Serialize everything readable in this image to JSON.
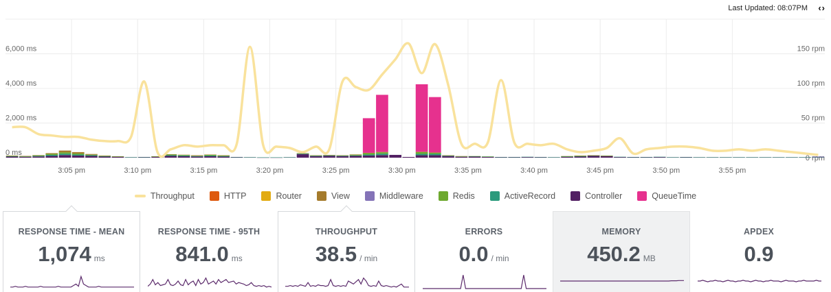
{
  "header": {
    "last_updated_label": "Last Updated: 08:07PM",
    "nav_arrows": "‹›"
  },
  "colors": {
    "throughput": "#f9e29c",
    "HTTP": "#de5a0f",
    "Router": "#e2ab13",
    "View": "#a57b2c",
    "Middleware": "#8473b7",
    "Redis": "#6ea92f",
    "ActiveRecord": "#2b9a7c",
    "Controller": "#522063",
    "QueueTime": "#e6318e",
    "sparkline": "#5b2a6b",
    "grid": "#ececec",
    "axis_text": "#666666"
  },
  "legend": [
    {
      "label": "Throughput",
      "key": "throughput",
      "kind": "line"
    },
    {
      "label": "HTTP",
      "key": "HTTP",
      "kind": "box"
    },
    {
      "label": "Router",
      "key": "Router",
      "kind": "box"
    },
    {
      "label": "View",
      "key": "View",
      "kind": "box"
    },
    {
      "label": "Middleware",
      "key": "Middleware",
      "kind": "box"
    },
    {
      "label": "Redis",
      "key": "Redis",
      "kind": "box"
    },
    {
      "label": "ActiveRecord",
      "key": "ActiveRecord",
      "kind": "box"
    },
    {
      "label": "Controller",
      "key": "Controller",
      "kind": "box"
    },
    {
      "label": "QueueTime",
      "key": "QueueTime",
      "kind": "box"
    }
  ],
  "chart_data": {
    "type": "bar",
    "title": "",
    "stacked": true,
    "x_start_minute": 0,
    "x_end_minute": 62,
    "x_ticks": [
      {
        "minute": 5,
        "label": "3:05 pm"
      },
      {
        "minute": 10,
        "label": "3:10 pm"
      },
      {
        "minute": 15,
        "label": "3:15 pm"
      },
      {
        "minute": 20,
        "label": "3:20 pm"
      },
      {
        "minute": 25,
        "label": "3:25 pm"
      },
      {
        "minute": 30,
        "label": "3:30 pm"
      },
      {
        "minute": 35,
        "label": "3:35 pm"
      },
      {
        "minute": 40,
        "label": "3:40 pm"
      },
      {
        "minute": 45,
        "label": "3:45 pm"
      },
      {
        "minute": 50,
        "label": "3:50 pm"
      },
      {
        "minute": 55,
        "label": "3:55 pm"
      }
    ],
    "y_left": {
      "min": 0,
      "max": 8000,
      "ticks": [
        0,
        2000,
        4000,
        6000
      ],
      "tick_labels": [
        "0 ms",
        "2,000 ms",
        "4,000 ms",
        "6,000 ms"
      ]
    },
    "y_right": {
      "min": 0,
      "max": 200,
      "ticks": [
        0,
        50,
        100,
        150
      ],
      "tick_labels": [
        "0 rpm",
        "50 rpm",
        "100 rpm",
        "150 rpm"
      ]
    },
    "stack_keys": [
      "Controller",
      "ActiveRecord",
      "Redis",
      "Middleware",
      "View",
      "Router",
      "HTTP",
      "QueueTime"
    ],
    "bar_series": [
      {
        "name": "QueueTime",
        "values": [
          0,
          0,
          0,
          0,
          0,
          0,
          0,
          0,
          0,
          0,
          0,
          0,
          0,
          0,
          0,
          0,
          0,
          0,
          0,
          0,
          0,
          0,
          0,
          0,
          0,
          0,
          0,
          2000,
          3300,
          0,
          0,
          3900,
          3200,
          0,
          0,
          0,
          0,
          0,
          0,
          0,
          0,
          0,
          0,
          0,
          0,
          0,
          0,
          0,
          0,
          0,
          0,
          0,
          0,
          0,
          0,
          0,
          0,
          0,
          0,
          0,
          0,
          0
        ]
      },
      {
        "name": "Controller",
        "values": [
          60,
          50,
          70,
          100,
          150,
          120,
          100,
          60,
          40,
          20,
          30,
          40,
          100,
          80,
          60,
          80,
          60,
          30,
          20,
          10,
          10,
          20,
          200,
          80,
          100,
          80,
          100,
          120,
          150,
          160,
          40,
          140,
          140,
          90,
          50,
          60,
          40,
          30,
          30,
          40,
          30,
          20,
          40,
          60,
          100,
          80,
          40,
          30,
          30,
          40,
          20,
          30,
          20,
          20,
          20,
          20,
          20,
          20,
          20,
          20,
          20,
          20
        ]
      },
      {
        "name": "ActiveRecord",
        "values": [
          20,
          20,
          30,
          60,
          80,
          60,
          40,
          20,
          20,
          10,
          10,
          20,
          40,
          40,
          30,
          40,
          30,
          10,
          10,
          10,
          10,
          10,
          30,
          30,
          30,
          30,
          30,
          60,
          80,
          0,
          0,
          80,
          80,
          30,
          20,
          20,
          20,
          10,
          10,
          10,
          10,
          10,
          20,
          20,
          20,
          20,
          10,
          10,
          10,
          10,
          10,
          10,
          10,
          10,
          10,
          10,
          10,
          10,
          10,
          10,
          10,
          10
        ]
      },
      {
        "name": "Redis",
        "values": [
          20,
          10,
          30,
          60,
          80,
          60,
          30,
          20,
          10,
          0,
          0,
          10,
          40,
          30,
          20,
          40,
          30,
          0,
          0,
          0,
          0,
          0,
          20,
          20,
          20,
          20,
          40,
          80,
          80,
          0,
          0,
          100,
          60,
          10,
          10,
          10,
          10,
          0,
          0,
          0,
          0,
          0,
          20,
          30,
          10,
          10,
          0,
          0,
          0,
          0,
          0,
          0,
          0,
          0,
          0,
          0,
          0,
          0,
          0,
          0,
          0,
          0
        ]
      },
      {
        "name": "Middleware",
        "values": [
          0,
          0,
          0,
          0,
          0,
          0,
          0,
          0,
          0,
          0,
          0,
          0,
          0,
          0,
          0,
          0,
          0,
          0,
          0,
          0,
          0,
          0,
          0,
          0,
          0,
          0,
          0,
          0,
          0,
          0,
          0,
          0,
          0,
          0,
          0,
          0,
          0,
          0,
          0,
          0,
          0,
          0,
          0,
          0,
          0,
          0,
          0,
          0,
          0,
          0,
          0,
          0,
          0,
          0,
          0,
          0,
          0,
          0,
          0,
          0,
          0,
          30
        ]
      },
      {
        "name": "View",
        "values": [
          20,
          20,
          20,
          40,
          100,
          80,
          40,
          20,
          10,
          0,
          0,
          10,
          20,
          20,
          30,
          20,
          20,
          0,
          0,
          0,
          0,
          0,
          10,
          10,
          10,
          10,
          20,
          20,
          20,
          0,
          0,
          20,
          20,
          10,
          10,
          0,
          0,
          0,
          0,
          0,
          0,
          0,
          10,
          10,
          10,
          10,
          0,
          0,
          0,
          0,
          0,
          0,
          0,
          0,
          0,
          0,
          0,
          0,
          0,
          0,
          0,
          0
        ]
      },
      {
        "name": "Router",
        "values": [
          0,
          0,
          0,
          0,
          0,
          0,
          0,
          0,
          0,
          0,
          0,
          0,
          0,
          0,
          0,
          0,
          0,
          0,
          0,
          0,
          0,
          0,
          0,
          0,
          0,
          0,
          0,
          0,
          0,
          0,
          0,
          0,
          0,
          0,
          0,
          0,
          0,
          0,
          0,
          0,
          0,
          0,
          0,
          0,
          0,
          0,
          0,
          0,
          0,
          0,
          0,
          0,
          0,
          0,
          0,
          0,
          0,
          0,
          0,
          0,
          0,
          0
        ]
      },
      {
        "name": "HTTP",
        "values": [
          0,
          0,
          0,
          0,
          0,
          0,
          0,
          0,
          0,
          0,
          0,
          0,
          0,
          0,
          0,
          0,
          0,
          0,
          0,
          0,
          0,
          0,
          0,
          0,
          0,
          0,
          0,
          0,
          0,
          0,
          0,
          0,
          0,
          0,
          0,
          0,
          0,
          0,
          0,
          0,
          0,
          0,
          0,
          0,
          0,
          0,
          0,
          0,
          0,
          0,
          0,
          0,
          0,
          0,
          0,
          0,
          0,
          0,
          0,
          0,
          0,
          0
        ]
      }
    ],
    "throughput_rpm": [
      [
        0,
        44
      ],
      [
        1,
        44
      ],
      [
        2,
        34
      ],
      [
        3,
        32
      ],
      [
        4,
        30
      ],
      [
        5,
        30
      ],
      [
        6,
        26
      ],
      [
        7,
        24
      ],
      [
        8,
        24
      ],
      [
        9,
        30
      ],
      [
        10,
        110
      ],
      [
        11,
        8
      ],
      [
        12,
        12
      ],
      [
        13,
        18
      ],
      [
        14,
        16
      ],
      [
        15,
        18
      ],
      [
        16,
        18
      ],
      [
        17,
        20
      ],
      [
        18,
        160
      ],
      [
        19,
        18
      ],
      [
        20,
        16
      ],
      [
        21,
        14
      ],
      [
        22,
        8
      ],
      [
        23,
        16
      ],
      [
        24,
        12
      ],
      [
        25,
        110
      ],
      [
        26,
        102
      ],
      [
        27,
        98
      ],
      [
        28,
        120
      ],
      [
        29,
        142
      ],
      [
        30,
        165
      ],
      [
        31,
        122
      ],
      [
        32,
        164
      ],
      [
        33,
        105
      ],
      [
        34,
        20
      ],
      [
        35,
        20
      ],
      [
        36,
        22
      ],
      [
        37,
        112
      ],
      [
        38,
        22
      ],
      [
        39,
        20
      ],
      [
        40,
        18
      ],
      [
        41,
        20
      ],
      [
        42,
        12
      ],
      [
        43,
        8
      ],
      [
        44,
        10
      ],
      [
        45,
        14
      ],
      [
        46,
        28
      ],
      [
        47,
        6
      ],
      [
        48,
        12
      ],
      [
        49,
        14
      ],
      [
        50,
        16
      ],
      [
        51,
        16
      ],
      [
        52,
        14
      ],
      [
        53,
        10
      ],
      [
        54,
        10
      ],
      [
        55,
        12
      ],
      [
        56,
        10
      ],
      [
        57,
        12
      ],
      [
        58,
        10
      ],
      [
        59,
        8
      ],
      [
        60,
        6
      ],
      [
        61,
        4
      ]
    ]
  },
  "cards": [
    {
      "title": "RESPONSE TIME - MEAN",
      "value": "1,074",
      "unit": "ms",
      "style": "selected",
      "spark": [
        2,
        2,
        3,
        2,
        2,
        2,
        3,
        2,
        2,
        2,
        2,
        2,
        3,
        2,
        2,
        2,
        2,
        2,
        2,
        3,
        2,
        2,
        2,
        2,
        2,
        4,
        6,
        3,
        16,
        6,
        4,
        2,
        2,
        2,
        2,
        3,
        2,
        2,
        2,
        2,
        2,
        2,
        2,
        2,
        2,
        2,
        2,
        2,
        2,
        2
      ]
    },
    {
      "title": "RESPONSE TIME - 95TH",
      "value": "841.0",
      "unit": "ms",
      "style": "plain",
      "spark": [
        3,
        6,
        12,
        5,
        8,
        4,
        5,
        6,
        12,
        5,
        4,
        6,
        10,
        5,
        4,
        12,
        5,
        8,
        10,
        4,
        12,
        6,
        8,
        14,
        6,
        8,
        10,
        6,
        12,
        8,
        10,
        12,
        8,
        9,
        10,
        6,
        8,
        7,
        6,
        4,
        5,
        8,
        4,
        3,
        4,
        3,
        4,
        2,
        3,
        2
      ]
    },
    {
      "title": "THROUGHPUT",
      "value": "38.5",
      "unit": "/ min",
      "style": "selected",
      "spark": [
        3,
        3,
        4,
        3,
        4,
        3,
        5,
        4,
        3,
        8,
        3,
        4,
        3,
        5,
        4,
        4,
        3,
        4,
        12,
        4,
        3,
        4,
        3,
        4,
        3,
        10,
        8,
        6,
        9,
        12,
        6,
        14,
        10,
        4,
        3,
        4,
        3,
        10,
        4,
        3,
        4,
        3,
        2,
        3,
        2,
        4,
        6,
        2,
        2,
        2
      ]
    },
    {
      "title": "ERRORS",
      "value": "0.0",
      "unit": "/ min",
      "style": "plain",
      "spark": [
        0,
        0,
        0,
        0,
        0,
        0,
        0,
        0,
        0,
        0,
        0,
        0,
        0,
        0,
        0,
        0,
        18,
        0,
        0,
        0,
        0,
        0,
        0,
        0,
        0,
        0,
        0,
        0,
        0,
        0,
        0,
        0,
        0,
        0,
        0,
        0,
        0,
        0,
        0,
        0,
        18,
        0,
        0,
        0,
        0,
        0,
        0,
        0,
        0,
        0
      ]
    },
    {
      "title": "MEMORY",
      "value": "450.2",
      "unit": "MB",
      "style": "shaded",
      "spark": [
        10,
        10,
        10,
        10,
        10,
        10,
        10,
        10,
        10,
        10,
        10,
        10,
        10,
        10,
        10,
        10,
        10,
        10,
        10,
        10,
        10,
        10,
        10,
        10,
        10,
        10,
        10,
        10,
        10,
        10,
        10,
        10,
        10,
        10,
        10,
        10,
        10,
        10,
        10,
        10,
        10,
        10,
        10,
        10,
        10.4,
        10.4,
        10.4,
        10.6,
        10.6,
        10.6
      ]
    },
    {
      "title": "APDEX",
      "value": "0.9",
      "unit": "",
      "style": "plain",
      "spark": [
        10,
        10,
        11,
        10,
        9,
        10,
        10,
        11,
        10,
        10,
        9,
        10,
        11,
        10,
        10,
        9,
        10,
        10,
        11,
        10,
        10,
        9,
        10,
        11,
        10,
        10,
        9,
        10,
        10,
        11,
        10,
        10,
        10,
        9,
        10,
        11,
        10,
        10,
        10,
        9,
        10,
        10,
        11,
        10,
        10,
        10,
        10,
        11,
        10,
        10
      ]
    }
  ]
}
